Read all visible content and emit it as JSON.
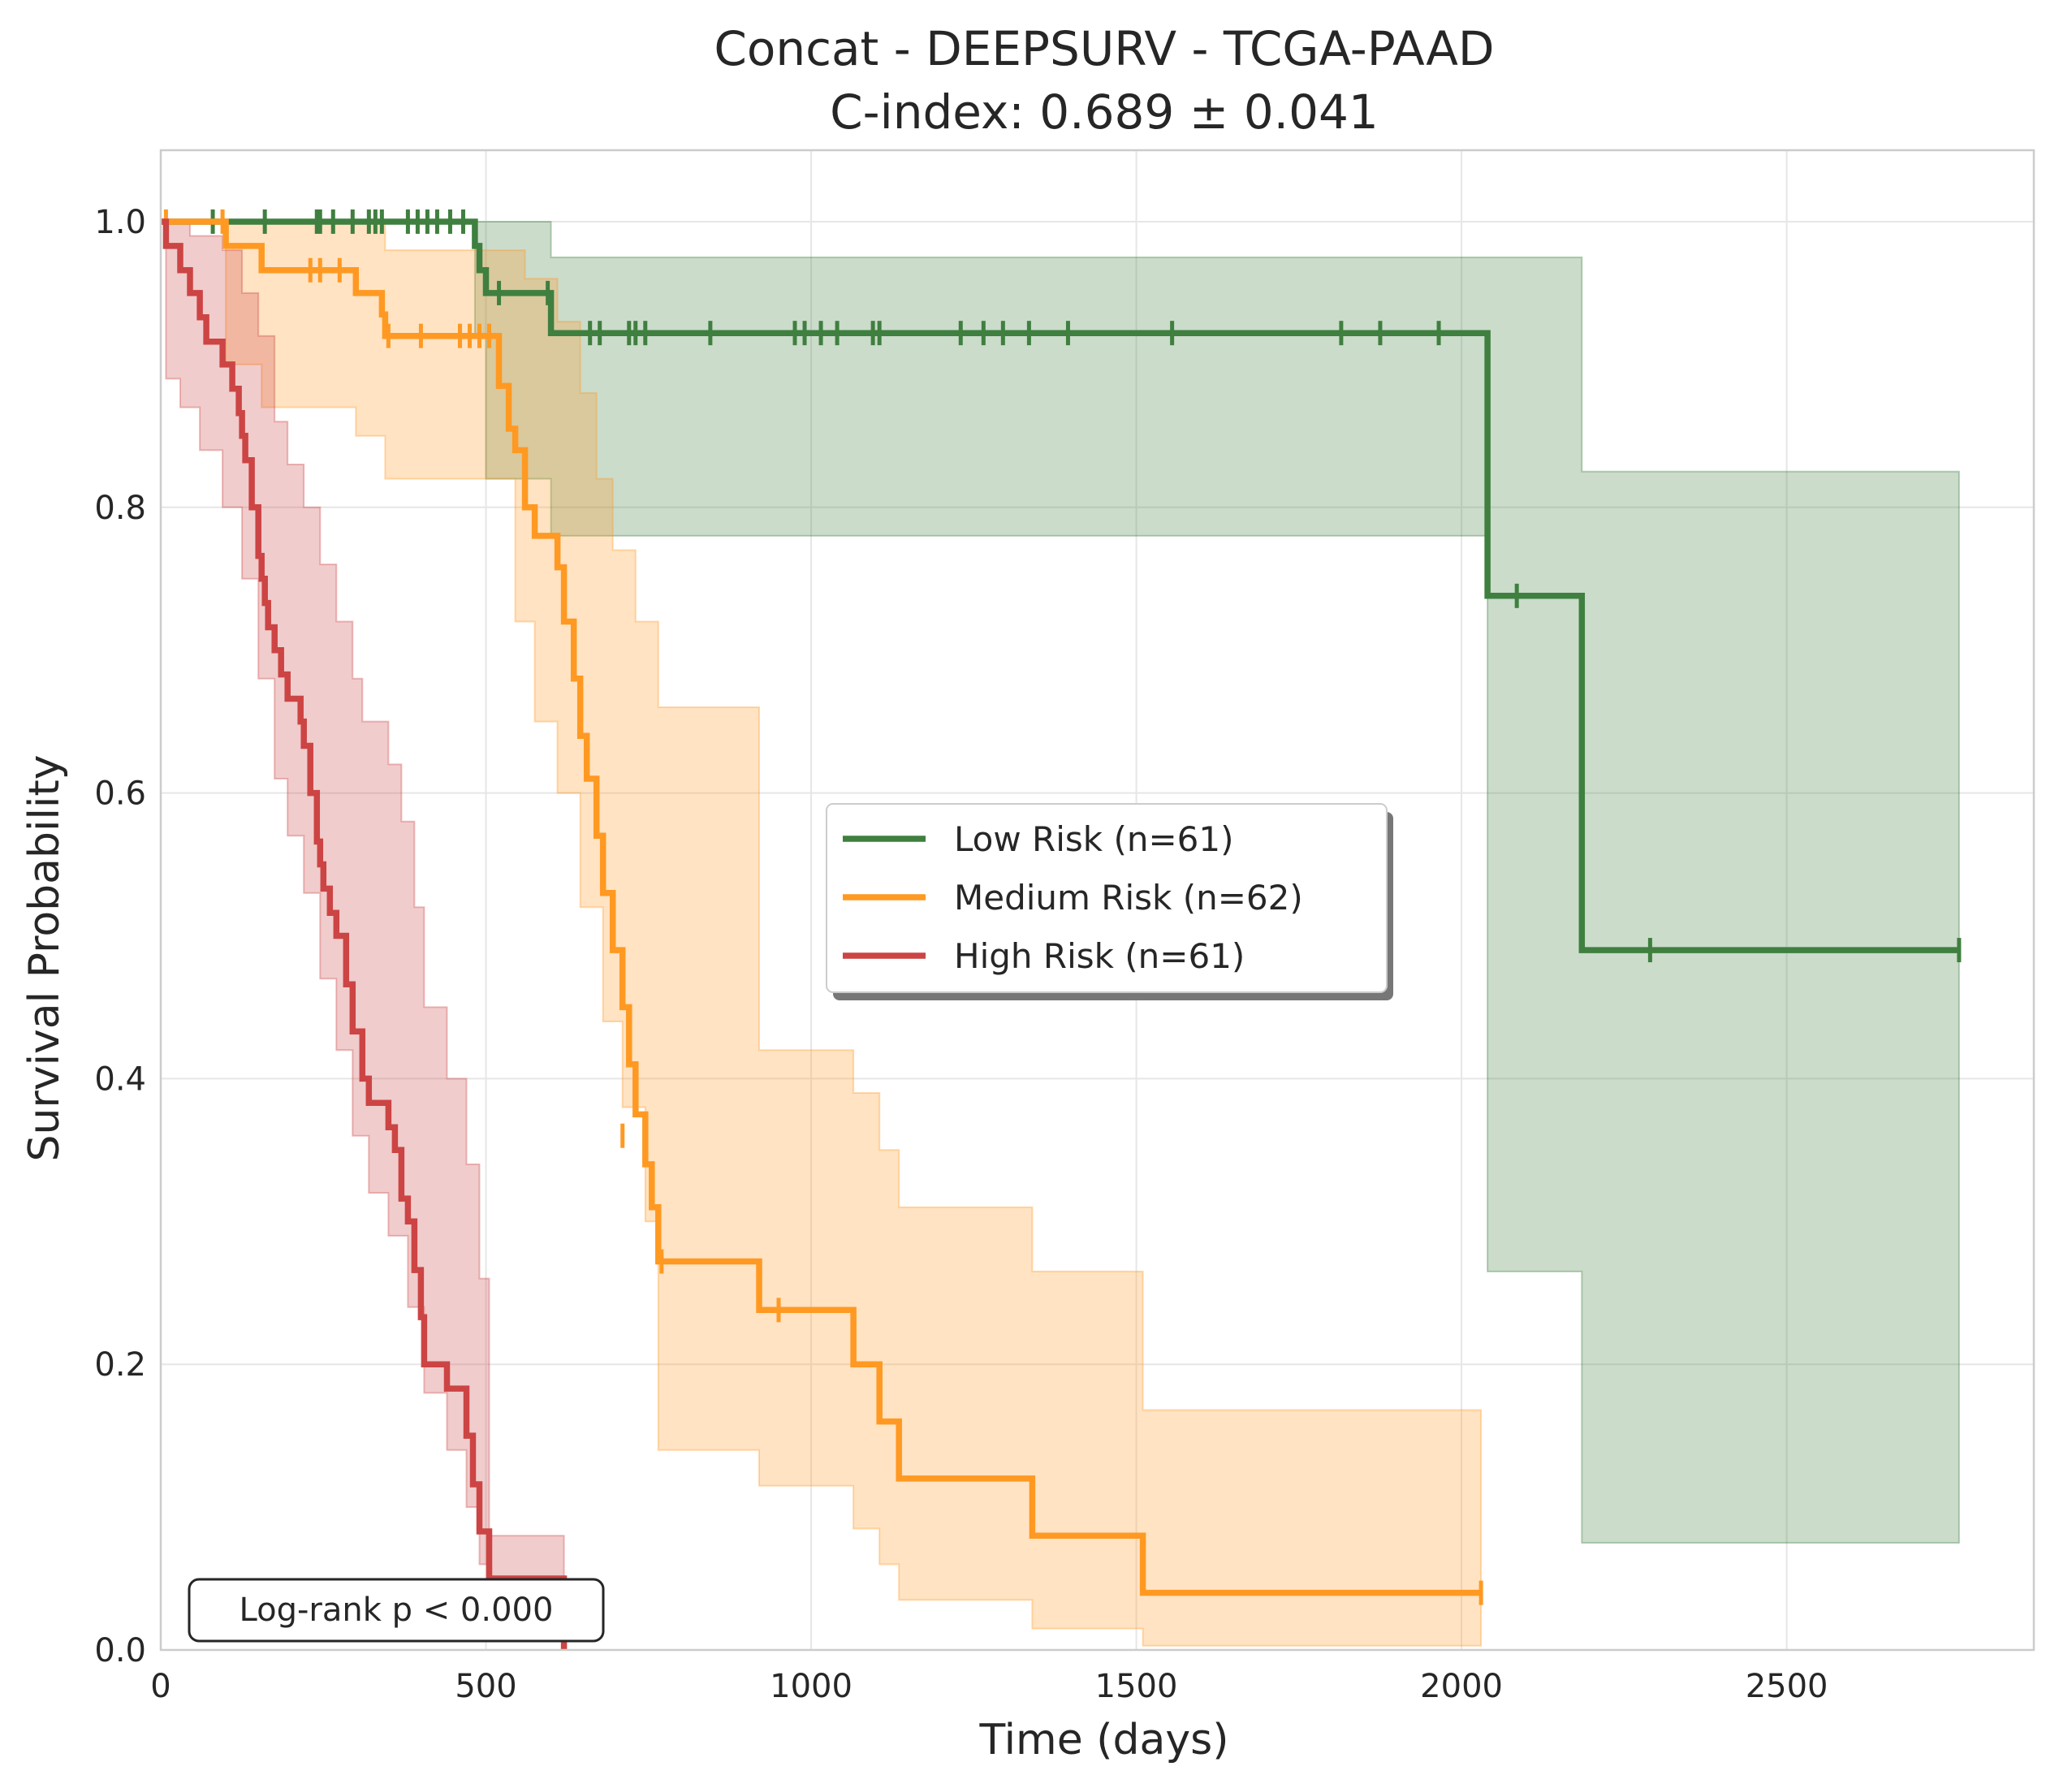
{
  "chart_data": {
    "type": "line",
    "subtype": "kaplan-meier",
    "title": "Concat - DEEPSURV - TCGA-PAAD",
    "subtitle": "C-index: 0.689 ± 0.041",
    "xlabel": "Time (days)",
    "ylabel": "Survival Probability",
    "xlim": [
      0,
      2880
    ],
    "ylim": [
      0.0,
      1.05
    ],
    "xticks": [
      0,
      500,
      1000,
      1500,
      2000,
      2500
    ],
    "yticks": [
      0.0,
      0.2,
      0.4,
      0.6,
      0.8,
      1.0
    ],
    "xtick_labels": [
      "0",
      "500",
      "1000",
      "1500",
      "2000",
      "2500"
    ],
    "ytick_labels": [
      "0.0",
      "0.2",
      "0.4",
      "0.6",
      "0.8",
      "1.0"
    ],
    "grid": true,
    "legend_position": "center-right",
    "annotation": "Log-rank p < 0.000",
    "series": [
      {
        "name": "Low Risk (n=61)",
        "color": "#3f7f3f",
        "steps": [
          [
            0,
            1.0
          ],
          [
            483,
            0.983
          ],
          [
            490,
            0.966
          ],
          [
            500,
            0.95
          ],
          [
            590,
            0.95
          ],
          [
            600,
            0.922
          ],
          [
            2040,
            0.922
          ],
          [
            2040,
            0.738
          ],
          [
            2185,
            0.738
          ],
          [
            2185,
            0.49
          ],
          [
            2765,
            0.49
          ]
        ],
        "ci_upper": [
          [
            0,
            1.0
          ],
          [
            483,
            1.0
          ],
          [
            600,
            0.98
          ],
          [
            600,
            0.975
          ],
          [
            2040,
            0.975
          ],
          [
            2040,
            0.975
          ],
          [
            2185,
            0.935
          ],
          [
            2185,
            0.825
          ],
          [
            2765,
            0.825
          ]
        ],
        "ci_lower": [
          [
            0,
            1.0
          ],
          [
            483,
            0.92
          ],
          [
            500,
            0.82
          ],
          [
            600,
            0.78
          ],
          [
            2040,
            0.78
          ],
          [
            2040,
            0.265
          ],
          [
            2185,
            0.265
          ],
          [
            2185,
            0.075
          ],
          [
            2765,
            0.075
          ]
        ],
        "censors": [
          [
            80,
            1.0
          ],
          [
            160,
            1.0
          ],
          [
            240,
            1.0
          ],
          [
            245,
            1.0
          ],
          [
            265,
            1.0
          ],
          [
            295,
            1.0
          ],
          [
            320,
            1.0
          ],
          [
            330,
            1.0
          ],
          [
            340,
            1.0
          ],
          [
            380,
            1.0
          ],
          [
            395,
            1.0
          ],
          [
            410,
            1.0
          ],
          [
            425,
            1.0
          ],
          [
            445,
            1.0
          ],
          [
            465,
            1.0
          ],
          [
            520,
            0.95
          ],
          [
            595,
            0.95
          ],
          [
            660,
            0.922
          ],
          [
            675,
            0.922
          ],
          [
            720,
            0.922
          ],
          [
            730,
            0.922
          ],
          [
            745,
            0.922
          ],
          [
            845,
            0.922
          ],
          [
            975,
            0.922
          ],
          [
            990,
            0.922
          ],
          [
            1015,
            0.922
          ],
          [
            1040,
            0.922
          ],
          [
            1095,
            0.922
          ],
          [
            1105,
            0.922
          ],
          [
            1230,
            0.922
          ],
          [
            1265,
            0.922
          ],
          [
            1295,
            0.922
          ],
          [
            1335,
            0.922
          ],
          [
            1395,
            0.922
          ],
          [
            1555,
            0.922
          ],
          [
            1815,
            0.922
          ],
          [
            1875,
            0.922
          ],
          [
            1965,
            0.922
          ],
          [
            2085,
            0.738
          ],
          [
            2290,
            0.49
          ],
          [
            2765,
            0.49
          ]
        ]
      },
      {
        "name": "Medium Risk (n=62)",
        "color": "#ff9922",
        "steps": [
          [
            0,
            1.0
          ],
          [
            100,
            0.983
          ],
          [
            155,
            0.966
          ],
          [
            300,
            0.95
          ],
          [
            340,
            0.935
          ],
          [
            345,
            0.92
          ],
          [
            510,
            0.92
          ],
          [
            520,
            0.885
          ],
          [
            535,
            0.855
          ],
          [
            545,
            0.84
          ],
          [
            560,
            0.8
          ],
          [
            575,
            0.78
          ],
          [
            610,
            0.758
          ],
          [
            620,
            0.72
          ],
          [
            635,
            0.68
          ],
          [
            645,
            0.64
          ],
          [
            655,
            0.61
          ],
          [
            670,
            0.57
          ],
          [
            680,
            0.53
          ],
          [
            695,
            0.49
          ],
          [
            710,
            0.45
          ],
          [
            720,
            0.41
          ],
          [
            730,
            0.375
          ],
          [
            745,
            0.34
          ],
          [
            755,
            0.31
          ],
          [
            765,
            0.272
          ],
          [
            920,
            0.272
          ],
          [
            920,
            0.238
          ],
          [
            1065,
            0.238
          ],
          [
            1065,
            0.2
          ],
          [
            1105,
            0.2
          ],
          [
            1105,
            0.16
          ],
          [
            1135,
            0.16
          ],
          [
            1135,
            0.12
          ],
          [
            1340,
            0.12
          ],
          [
            1340,
            0.08
          ],
          [
            1510,
            0.08
          ],
          [
            1510,
            0.04
          ],
          [
            2030,
            0.04
          ]
        ],
        "ci_upper": [
          [
            0,
            1.0
          ],
          [
            100,
            1.0
          ],
          [
            300,
            1.0
          ],
          [
            345,
            0.98
          ],
          [
            510,
            0.98
          ],
          [
            560,
            0.96
          ],
          [
            610,
            0.93
          ],
          [
            645,
            0.88
          ],
          [
            670,
            0.82
          ],
          [
            695,
            0.77
          ],
          [
            730,
            0.72
          ],
          [
            765,
            0.66
          ],
          [
            920,
            0.66
          ],
          [
            920,
            0.42
          ],
          [
            1065,
            0.42
          ],
          [
            1065,
            0.39
          ],
          [
            1105,
            0.39
          ],
          [
            1105,
            0.35
          ],
          [
            1135,
            0.35
          ],
          [
            1135,
            0.31
          ],
          [
            1340,
            0.31
          ],
          [
            1340,
            0.265
          ],
          [
            1510,
            0.265
          ],
          [
            1510,
            0.168
          ],
          [
            2030,
            0.168
          ]
        ],
        "ci_lower": [
          [
            0,
            1.0
          ],
          [
            100,
            0.9
          ],
          [
            155,
            0.87
          ],
          [
            300,
            0.85
          ],
          [
            345,
            0.82
          ],
          [
            510,
            0.82
          ],
          [
            545,
            0.72
          ],
          [
            575,
            0.65
          ],
          [
            610,
            0.6
          ],
          [
            645,
            0.52
          ],
          [
            680,
            0.44
          ],
          [
            710,
            0.38
          ],
          [
            745,
            0.3
          ],
          [
            765,
            0.14
          ],
          [
            920,
            0.14
          ],
          [
            920,
            0.115
          ],
          [
            1065,
            0.115
          ],
          [
            1065,
            0.085
          ],
          [
            1105,
            0.085
          ],
          [
            1105,
            0.06
          ],
          [
            1135,
            0.06
          ],
          [
            1135,
            0.035
          ],
          [
            1340,
            0.035
          ],
          [
            1340,
            0.015
          ],
          [
            1510,
            0.015
          ],
          [
            1510,
            0.003
          ],
          [
            2030,
            0.003
          ]
        ],
        "censors": [
          [
            8,
            1.0
          ],
          [
            95,
            1.0
          ],
          [
            230,
            0.966
          ],
          [
            245,
            0.966
          ],
          [
            275,
            0.966
          ],
          [
            350,
            0.92
          ],
          [
            400,
            0.92
          ],
          [
            460,
            0.92
          ],
          [
            475,
            0.92
          ],
          [
            490,
            0.92
          ],
          [
            505,
            0.92
          ],
          [
            710,
            0.36
          ],
          [
            770,
            0.272
          ],
          [
            950,
            0.238
          ],
          [
            2030,
            0.04
          ]
        ]
      },
      {
        "name": "High Risk (n=61)",
        "color": "#cc4444",
        "steps": [
          [
            0,
            1.0
          ],
          [
            8,
            0.983
          ],
          [
            30,
            0.966
          ],
          [
            45,
            0.95
          ],
          [
            60,
            0.933
          ],
          [
            70,
            0.916
          ],
          [
            95,
            0.9
          ],
          [
            110,
            0.883
          ],
          [
            120,
            0.866
          ],
          [
            125,
            0.85
          ],
          [
            130,
            0.833
          ],
          [
            140,
            0.8
          ],
          [
            150,
            0.766
          ],
          [
            155,
            0.75
          ],
          [
            160,
            0.733
          ],
          [
            165,
            0.716
          ],
          [
            175,
            0.7
          ],
          [
            185,
            0.683
          ],
          [
            195,
            0.666
          ],
          [
            215,
            0.65
          ],
          [
            220,
            0.633
          ],
          [
            230,
            0.6
          ],
          [
            240,
            0.566
          ],
          [
            245,
            0.55
          ],
          [
            250,
            0.533
          ],
          [
            260,
            0.516
          ],
          [
            270,
            0.5
          ],
          [
            285,
            0.466
          ],
          [
            295,
            0.433
          ],
          [
            310,
            0.4
          ],
          [
            320,
            0.383
          ],
          [
            350,
            0.366
          ],
          [
            360,
            0.35
          ],
          [
            370,
            0.316
          ],
          [
            380,
            0.3
          ],
          [
            390,
            0.266
          ],
          [
            400,
            0.233
          ],
          [
            405,
            0.2
          ],
          [
            440,
            0.183
          ],
          [
            470,
            0.15
          ],
          [
            480,
            0.116
          ],
          [
            490,
            0.083
          ],
          [
            505,
            0.05
          ],
          [
            620,
            0.0
          ]
        ],
        "ci_upper": [
          [
            0,
            1.0
          ],
          [
            45,
            0.99
          ],
          [
            95,
            0.98
          ],
          [
            125,
            0.95
          ],
          [
            150,
            0.92
          ],
          [
            175,
            0.86
          ],
          [
            195,
            0.83
          ],
          [
            220,
            0.8
          ],
          [
            245,
            0.76
          ],
          [
            270,
            0.72
          ],
          [
            295,
            0.68
          ],
          [
            310,
            0.65
          ],
          [
            350,
            0.62
          ],
          [
            370,
            0.58
          ],
          [
            390,
            0.52
          ],
          [
            405,
            0.45
          ],
          [
            440,
            0.4
          ],
          [
            470,
            0.34
          ],
          [
            490,
            0.26
          ],
          [
            505,
            0.08
          ],
          [
            620,
            0.08
          ]
        ],
        "ci_lower": [
          [
            0,
            1.0
          ],
          [
            8,
            0.89
          ],
          [
            30,
            0.87
          ],
          [
            60,
            0.84
          ],
          [
            95,
            0.8
          ],
          [
            125,
            0.75
          ],
          [
            150,
            0.68
          ],
          [
            175,
            0.61
          ],
          [
            195,
            0.57
          ],
          [
            220,
            0.53
          ],
          [
            245,
            0.47
          ],
          [
            270,
            0.42
          ],
          [
            295,
            0.36
          ],
          [
            320,
            0.32
          ],
          [
            350,
            0.29
          ],
          [
            380,
            0.24
          ],
          [
            405,
            0.18
          ],
          [
            440,
            0.14
          ],
          [
            470,
            0.1
          ],
          [
            490,
            0.06
          ],
          [
            505,
            0.02
          ],
          [
            620,
            0.0
          ]
        ],
        "censors": []
      }
    ]
  }
}
